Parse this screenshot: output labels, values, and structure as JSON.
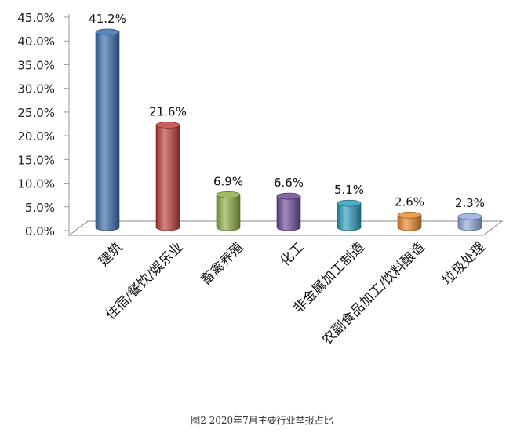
{
  "caption": "图2   2020年7月主要行业举报占比",
  "chart_data": {
    "type": "bar",
    "categories": [
      "建筑",
      "住宿/餐饮/娱乐业",
      "畜禽养殖",
      "化工",
      "非金属加工制造",
      "农副食品加工/饮料酿造",
      "垃圾处理"
    ],
    "values": [
      41.2,
      21.6,
      6.9,
      6.6,
      5.1,
      2.6,
      2.3
    ],
    "data_labels": [
      "41.2%",
      "21.6%",
      "6.9%",
      "6.6%",
      "5.1%",
      "2.6%",
      "2.3%"
    ],
    "y_ticks": [
      "0.0%",
      "5.0%",
      "10.0%",
      "15.0%",
      "20.0%",
      "25.0%",
      "30.0%",
      "35.0%",
      "40.0%",
      "45.0%"
    ],
    "ylim": [
      0,
      45
    ],
    "grid": false,
    "legend": "none",
    "colors": [
      "#3a6fb0",
      "#c0413f",
      "#8fb045",
      "#6d4c9b",
      "#2f9fbf",
      "#ec8a2e",
      "#94aee0"
    ]
  }
}
